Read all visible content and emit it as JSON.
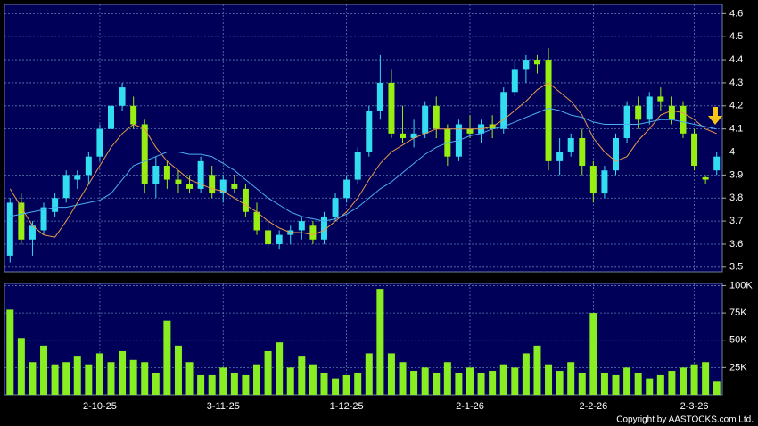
{
  "chart_data": [
    {
      "type": "candlestick",
      "ylim": [
        3.48,
        4.64
      ],
      "yticks": [
        3.5,
        3.6,
        3.7,
        3.8,
        3.9,
        4,
        4.1,
        4.2,
        4.3,
        4.4,
        4.5,
        4.6
      ],
      "grid": true,
      "up_color": "#33ddf0",
      "down_color": "#99ee11",
      "open": [
        3.55,
        3.78,
        3.62,
        3.66,
        3.74,
        3.8,
        3.88,
        3.9,
        3.98,
        4.1,
        4.2,
        4.2,
        4.12,
        3.86,
        3.94,
        3.88,
        3.86,
        3.84,
        3.9,
        3.82,
        3.86,
        3.84,
        3.74,
        3.66,
        3.6,
        3.64,
        3.66,
        3.68,
        3.62,
        3.72,
        3.8,
        3.88,
        4.0,
        4.18,
        4.3,
        4.08,
        4.06,
        4.08,
        4.2,
        4.1,
        3.98,
        4.1,
        4.08,
        4.12,
        4.1,
        4.26,
        4.36,
        4.4,
        4.4,
        3.96,
        4.0,
        4.06,
        3.94,
        3.82,
        3.92,
        4.06,
        4.2,
        4.14,
        4.24,
        4.2,
        4.2,
        4.08,
        3.89,
        3.92
      ],
      "high": [
        3.8,
        3.82,
        3.7,
        3.78,
        3.82,
        3.92,
        3.92,
        4.0,
        4.12,
        4.22,
        4.3,
        4.24,
        4.14,
        3.98,
        3.96,
        3.92,
        3.9,
        3.98,
        3.94,
        3.9,
        3.9,
        3.86,
        3.78,
        3.7,
        3.66,
        3.68,
        3.72,
        3.7,
        3.74,
        3.82,
        3.9,
        4.02,
        4.2,
        4.42,
        4.36,
        4.2,
        4.14,
        4.22,
        4.24,
        4.12,
        4.14,
        4.16,
        4.14,
        4.16,
        4.28,
        4.4,
        4.42,
        4.42,
        4.45,
        4.06,
        4.08,
        4.1,
        3.96,
        3.94,
        4.08,
        4.22,
        4.24,
        4.26,
        4.28,
        4.24,
        4.22,
        4.1,
        3.9,
        4.0
      ],
      "low": [
        3.52,
        3.6,
        3.55,
        3.64,
        3.72,
        3.78,
        3.84,
        3.86,
        3.96,
        4.08,
        4.18,
        4.1,
        3.82,
        3.8,
        3.84,
        3.82,
        3.82,
        3.82,
        3.8,
        3.78,
        3.82,
        3.72,
        3.64,
        3.58,
        3.58,
        3.6,
        3.62,
        3.6,
        3.6,
        3.7,
        3.78,
        3.86,
        3.98,
        4.14,
        4.06,
        4.04,
        4.02,
        4.06,
        4.06,
        3.94,
        3.96,
        4.06,
        4.04,
        4.06,
        4.08,
        4.24,
        4.3,
        4.34,
        3.92,
        3.9,
        3.98,
        3.9,
        3.78,
        3.8,
        3.9,
        4.04,
        4.1,
        4.12,
        4.18,
        4.12,
        4.06,
        3.92,
        3.86,
        3.9
      ],
      "close": [
        3.78,
        3.62,
        3.68,
        3.76,
        3.8,
        3.9,
        3.9,
        3.98,
        4.1,
        4.2,
        4.28,
        4.12,
        3.86,
        3.94,
        3.88,
        3.86,
        3.84,
        3.96,
        3.82,
        3.88,
        3.84,
        3.74,
        3.66,
        3.6,
        3.64,
        3.66,
        3.7,
        3.62,
        3.72,
        3.8,
        3.88,
        4.0,
        4.18,
        4.3,
        4.08,
        4.06,
        4.08,
        4.2,
        4.1,
        3.98,
        4.12,
        4.08,
        4.12,
        4.1,
        4.26,
        4.36,
        4.4,
        4.38,
        3.96,
        4.0,
        4.06,
        3.94,
        3.82,
        3.92,
        4.06,
        4.2,
        4.14,
        4.24,
        4.22,
        4.14,
        4.08,
        3.94,
        3.88,
        3.98
      ],
      "series": [
        {
          "color": "#e89a4a",
          "values": [
            3.84,
            3.76,
            3.68,
            3.64,
            3.63,
            3.7,
            3.78,
            3.86,
            3.94,
            4.02,
            4.08,
            4.12,
            4.1,
            4.02,
            3.96,
            3.92,
            3.88,
            3.86,
            3.84,
            3.83,
            3.8,
            3.77,
            3.74,
            3.7,
            3.67,
            3.65,
            3.65,
            3.64,
            3.66,
            3.7,
            3.74,
            3.8,
            3.88,
            3.95,
            4.0,
            4.03,
            4.06,
            4.08,
            4.1,
            4.1,
            4.1,
            4.1,
            4.1,
            4.11,
            4.14,
            4.18,
            4.22,
            4.27,
            4.3,
            4.26,
            4.22,
            4.16,
            4.06,
            4.0,
            3.96,
            3.98,
            4.05,
            4.1,
            4.16,
            4.18,
            4.17,
            4.14,
            4.1,
            4.08
          ]
        },
        {
          "color": "#4aaef0",
          "values": [
            3.72,
            3.73,
            3.74,
            3.75,
            3.76,
            3.76,
            3.77,
            3.78,
            3.79,
            3.82,
            3.88,
            3.94,
            3.96,
            3.98,
            4.0,
            4.0,
            3.99,
            3.99,
            3.98,
            3.95,
            3.92,
            3.88,
            3.84,
            3.8,
            3.77,
            3.74,
            3.72,
            3.71,
            3.7,
            3.71,
            3.73,
            3.76,
            3.8,
            3.84,
            3.87,
            3.91,
            3.95,
            3.99,
            4.02,
            4.04,
            4.05,
            4.07,
            4.08,
            4.1,
            4.11,
            4.13,
            4.15,
            4.17,
            4.19,
            4.18,
            4.16,
            4.15,
            4.13,
            4.12,
            4.12,
            4.12,
            4.12,
            4.13,
            4.14,
            4.14,
            4.13,
            4.12,
            4.11,
            4.1
          ]
        }
      ]
    },
    {
      "type": "bar",
      "color": "#88ee22",
      "ylim": [
        0,
        102000
      ],
      "yticks": [
        {
          "value": 25000,
          "label": "25K"
        },
        {
          "value": 50000,
          "label": "50K"
        },
        {
          "value": 75000,
          "label": "75K"
        },
        {
          "value": 100000,
          "label": "100K"
        }
      ],
      "grid": true,
      "categories": [
        null,
        null,
        null,
        null,
        null,
        null,
        null,
        null,
        "2-10-25",
        null,
        null,
        null,
        null,
        null,
        null,
        null,
        null,
        null,
        null,
        "3-11-25",
        null,
        null,
        null,
        null,
        null,
        null,
        null,
        null,
        null,
        null,
        "1-12-25",
        null,
        null,
        null,
        null,
        null,
        null,
        null,
        null,
        null,
        null,
        "2-1-26",
        null,
        null,
        null,
        null,
        null,
        null,
        null,
        null,
        null,
        null,
        "2-2-26",
        null,
        null,
        null,
        null,
        null,
        null,
        null,
        null,
        "2-3-26",
        null,
        null
      ],
      "values": [
        78000,
        52000,
        30000,
        45000,
        28000,
        30000,
        35000,
        28000,
        38000,
        30000,
        40000,
        32000,
        30000,
        20000,
        68000,
        45000,
        30000,
        18000,
        18000,
        25000,
        20000,
        18000,
        28000,
        40000,
        48000,
        25000,
        35000,
        28000,
        20000,
        15000,
        18000,
        20000,
        38000,
        97000,
        38000,
        30000,
        22000,
        25000,
        20000,
        30000,
        20000,
        25000,
        20000,
        22000,
        28000,
        25000,
        38000,
        45000,
        28000,
        22000,
        30000,
        20000,
        75000,
        20000,
        18000,
        25000,
        20000,
        15000,
        18000,
        22000,
        25000,
        28000,
        30000,
        12000
      ]
    }
  ],
  "copyright": "Copyright by AASTOCKS.com Ltd."
}
